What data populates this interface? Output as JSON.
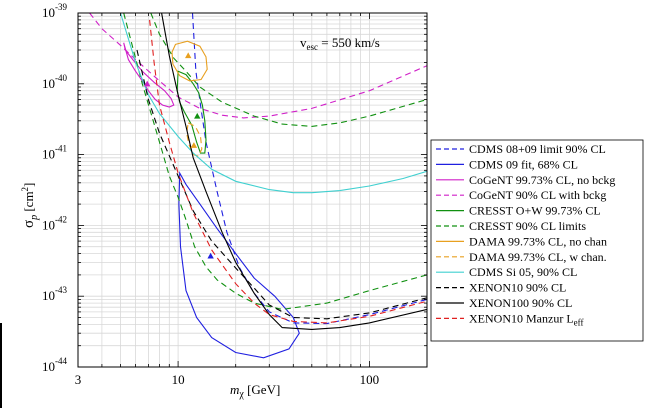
{
  "chart_data": {
    "type": "line",
    "xscale": "log",
    "yscale": "log",
    "xlim": [
      3,
      200
    ],
    "ylim": [
      1e-44,
      1e-39
    ],
    "xlabel": {
      "main": "m",
      "sub": "χ",
      "unit": " [GeV]"
    },
    "ylabel": {
      "main": "σ",
      "sub": "p",
      "unit": " [cm",
      "sup": "2",
      "close": "]"
    },
    "xticks": [
      {
        "value": 3,
        "label": "3"
      },
      {
        "value": 10,
        "label": "10"
      },
      {
        "value": 100,
        "label": "100"
      }
    ],
    "yticks": [
      {
        "value": 1e-44,
        "base": "10",
        "exp": "-44"
      },
      {
        "value": 1e-43,
        "base": "10",
        "exp": "-43"
      },
      {
        "value": 1e-42,
        "base": "10",
        "exp": "-42"
      },
      {
        "value": 1e-41,
        "base": "10",
        "exp": "-41"
      },
      {
        "value": 1e-40,
        "base": "10",
        "exp": "-40"
      },
      {
        "value": 1e-39,
        "base": "10",
        "exp": "-39"
      }
    ],
    "annotation": {
      "pre": "v",
      "sub": "esc",
      "post": " = 550 km/s"
    },
    "grid": true,
    "legend_position": "right",
    "series": [
      {
        "name": "CDMS 08+09 limit 90% CL",
        "color": "#2020e0",
        "dash": "dashed",
        "closed": false,
        "points": [
          [
            11.9,
            1e-39
          ],
          [
            12.4,
            1.5e-40
          ],
          [
            13.1,
            5e-41
          ],
          [
            14,
            1.5e-41
          ],
          [
            16,
            3e-42
          ],
          [
            18,
            8e-43
          ],
          [
            21,
            2.5e-43
          ],
          [
            25,
            1.1e-43
          ],
          [
            30,
            6e-44
          ],
          [
            40,
            4.2e-44
          ],
          [
            60,
            4.1e-44
          ],
          [
            100,
            5.5e-44
          ],
          [
            200,
            9e-44
          ]
        ]
      },
      {
        "name": "CDMS 09 fit,  68% CL",
        "color": "#2020e0",
        "dash": "solid",
        "closed": true,
        "points": [
          [
            10.2,
            5.5e-42
          ],
          [
            11,
            3.8e-42
          ],
          [
            13,
            2e-42
          ],
          [
            16,
            9e-43
          ],
          [
            20,
            4e-43
          ],
          [
            25,
            1.8e-43
          ],
          [
            32,
            1e-43
          ],
          [
            40,
            5e-44
          ],
          [
            43,
            3e-44
          ],
          [
            38,
            1.8e-44
          ],
          [
            28,
            1.35e-44
          ],
          [
            20,
            1.6e-44
          ],
          [
            15,
            2.6e-44
          ],
          [
            12.5,
            5e-44
          ],
          [
            11,
            1.2e-43
          ],
          [
            10.3,
            5e-43
          ],
          [
            10.1,
            2e-42
          ]
        ]
      },
      {
        "name": "CoGeNT 99.73% CL, no bckg",
        "color": "#d020c8",
        "dash": "solid",
        "closed": true,
        "points": [
          [
            5.2,
            3.8e-40
          ],
          [
            5.5,
            2.2e-40
          ],
          [
            6,
            1.5e-40
          ],
          [
            6.5,
            1.1e-40
          ],
          [
            7,
            8e-41
          ],
          [
            7.6,
            6e-41
          ],
          [
            8.3,
            5e-41
          ],
          [
            9,
            4.7e-41
          ],
          [
            9.5,
            5e-41
          ],
          [
            9.2,
            6.2e-41
          ],
          [
            8.5,
            8e-41
          ],
          [
            7.5,
            1.05e-40
          ],
          [
            6.5,
            1.5e-40
          ],
          [
            5.8,
            2.2e-40
          ],
          [
            5.3,
            3e-40
          ]
        ]
      },
      {
        "name": "CoGeNT 90% CL with bckg",
        "color": "#d020c8",
        "dash": "dashed",
        "closed": false,
        "points": [
          [
            3.45,
            1e-39
          ],
          [
            4,
            6e-40
          ],
          [
            5,
            3.5e-40
          ],
          [
            6,
            2.2e-40
          ],
          [
            8,
            1.1e-40
          ],
          [
            10,
            6.5e-41
          ],
          [
            13,
            4.5e-41
          ],
          [
            17,
            3.6e-41
          ],
          [
            22,
            3.3e-41
          ],
          [
            30,
            3.5e-41
          ],
          [
            50,
            4.5e-41
          ],
          [
            100,
            8e-41
          ],
          [
            200,
            1.8e-40
          ]
        ]
      },
      {
        "name": "CRESST O+W 99.73% CL",
        "color": "#109010",
        "dash": "solid",
        "closed": true,
        "points": [
          [
            10,
            1.5e-40
          ],
          [
            11,
            1.35e-40
          ],
          [
            12,
            1e-40
          ],
          [
            12.8,
            7.5e-41
          ],
          [
            13.4,
            5e-41
          ],
          [
            13.8,
            3e-41
          ],
          [
            14,
            1.6e-41
          ],
          [
            13.8,
            1.05e-41
          ],
          [
            13.1,
            1.05e-41
          ],
          [
            12.5,
            1.5e-41
          ],
          [
            11.8,
            2.6e-41
          ],
          [
            10.8,
            4e-41
          ],
          [
            10.2,
            5.5e-41
          ],
          [
            9.9,
            8e-41
          ]
        ]
      },
      {
        "name": "CRESST 90% CL limits",
        "color": "#109010",
        "dash": "dashed",
        "closed": false,
        "points": [
          [
            5.2,
            1e-39
          ],
          [
            6.5,
            1e-40
          ],
          [
            8,
            1.5e-41
          ],
          [
            9,
            5e-42
          ],
          [
            10,
            2.5e-42
          ],
          [
            11,
            1.2e-42
          ],
          [
            12.2,
            5e-43
          ],
          [
            14,
            2.6e-43
          ],
          [
            16,
            1.7e-43
          ],
          [
            20,
            1.1e-43
          ],
          [
            25,
            8e-44
          ],
          [
            35,
            6.5e-44
          ],
          [
            60,
            8e-44
          ],
          [
            100,
            1.2e-43
          ],
          [
            200,
            2e-43
          ]
        ]
      },
      {
        "name": "CRESST 90% CL limits (upper)",
        "legend": false,
        "color": "#109010",
        "dash": "dashed",
        "closed": false,
        "points": [
          [
            7.2,
            1e-39
          ],
          [
            8,
            5e-40
          ],
          [
            9.5,
            2.3e-40
          ],
          [
            11,
            1.5e-40
          ],
          [
            13,
            9e-41
          ],
          [
            17,
            5.5e-41
          ],
          [
            25,
            3.5e-41
          ],
          [
            35,
            2.7e-41
          ],
          [
            50,
            2.5e-41
          ],
          [
            70,
            2.8e-41
          ],
          [
            100,
            3.5e-41
          ],
          [
            200,
            6e-41
          ]
        ]
      },
      {
        "name": "DAMA 99.73% CL, no chan",
        "color": "#e8a020",
        "dash": "solid",
        "closed": true,
        "points": [
          [
            9.7,
            3.6e-40
          ],
          [
            11.2,
            4e-40
          ],
          [
            13,
            3.4e-40
          ],
          [
            14,
            2.4e-40
          ],
          [
            14.2,
            1.6e-40
          ],
          [
            13.2,
            1.15e-40
          ],
          [
            11.5,
            1.1e-40
          ],
          [
            10.2,
            1.3e-40
          ],
          [
            9.4,
            1.9e-40
          ],
          [
            9.3,
            2.8e-40
          ]
        ]
      },
      {
        "name": "DAMA 99.73% CL, w chan.",
        "color": "#e8a020",
        "dash": "dashed",
        "closed": true,
        "points": [
          [
            11.3,
            2.8e-41
          ],
          [
            12.3,
            2.5e-41
          ],
          [
            13.1,
            1.8e-41
          ],
          [
            13.3,
            1.2e-41
          ],
          [
            12.8,
            9.5e-42
          ],
          [
            12,
            1e-41
          ],
          [
            11.4,
            1.4e-41
          ],
          [
            11.1,
            2e-41
          ]
        ]
      },
      {
        "name": "CDMS Si 05, 90% CL",
        "color": "#40d0d0",
        "dash": "solid",
        "closed": false,
        "points": [
          [
            5,
            1e-39
          ],
          [
            6,
            2e-40
          ],
          [
            7,
            7e-41
          ],
          [
            8,
            3.8e-41
          ],
          [
            10,
            1.8e-41
          ],
          [
            12,
            1.05e-41
          ],
          [
            15,
            6.2e-42
          ],
          [
            20,
            4.2e-42
          ],
          [
            30,
            3.2e-42
          ],
          [
            40,
            2.9e-42
          ],
          [
            50,
            2.9e-42
          ],
          [
            70,
            3.1e-42
          ],
          [
            100,
            3.6e-42
          ],
          [
            150,
            4.6e-42
          ],
          [
            200,
            5.8e-42
          ]
        ]
      },
      {
        "name": "XENON10 90% CL",
        "color": "#000000",
        "dash": "dashed",
        "closed": false,
        "points": [
          [
            6.1,
            3e-40
          ],
          [
            7,
            6e-41
          ],
          [
            8,
            2e-41
          ],
          [
            10,
            5e-42
          ],
          [
            12,
            1.6e-42
          ],
          [
            15,
            6e-43
          ],
          [
            20,
            2.5e-43
          ],
          [
            25,
            1.3e-43
          ],
          [
            30,
            7.5e-44
          ],
          [
            40,
            5e-44
          ],
          [
            60,
            4.8e-44
          ],
          [
            100,
            5.8e-44
          ],
          [
            200,
            9.5e-44
          ]
        ]
      },
      {
        "name": "XENON100 90% CL",
        "color": "#000000",
        "dash": "solid",
        "closed": false,
        "points": [
          [
            8.2,
            1e-39
          ],
          [
            9,
            2.5e-40
          ],
          [
            10,
            7e-41
          ],
          [
            11,
            2.5e-41
          ],
          [
            12,
            9e-42
          ],
          [
            14,
            3e-42
          ],
          [
            17,
            8e-43
          ],
          [
            20,
            3e-43
          ],
          [
            25,
            1.1e-43
          ],
          [
            30,
            5.5e-44
          ],
          [
            35,
            3.6e-44
          ],
          [
            50,
            3.4e-44
          ],
          [
            70,
            3.6e-44
          ],
          [
            100,
            4.2e-44
          ],
          [
            200,
            6.5e-44
          ]
        ]
      },
      {
        "name": "XENON10 Manzur L",
        "sub": "eff",
        "color": "#e02020",
        "dash": "dashed",
        "closed": false,
        "points": [
          [
            7.1,
            8e-40
          ],
          [
            7.5,
            2e-40
          ],
          [
            8,
            5e-41
          ],
          [
            9,
            1.5e-41
          ],
          [
            10,
            5.5e-42
          ],
          [
            12,
            1.5e-42
          ],
          [
            15,
            4.5e-43
          ],
          [
            20,
            1.5e-43
          ],
          [
            25,
            8e-44
          ],
          [
            30,
            5.5e-44
          ],
          [
            40,
            4.4e-44
          ],
          [
            60,
            4.2e-44
          ],
          [
            100,
            5.2e-44
          ],
          [
            200,
            8.5e-44
          ]
        ]
      }
    ],
    "markers": [
      {
        "series": "DAMA no chan",
        "x": 11.3,
        "y": 2.5e-40,
        "color": "#e8a020"
      },
      {
        "series": "DAMA w chan",
        "x": 12.1,
        "y": 1.35e-41,
        "color": "#e8a020"
      },
      {
        "series": "CoGeNT",
        "x": 6.9,
        "y": 1e-40,
        "color": "#d020c8"
      },
      {
        "series": "CRESST",
        "x": 12.6,
        "y": 3.5e-41,
        "color": "#109010"
      },
      {
        "series": "CDMS 09",
        "x": 14.8,
        "y": 3.7e-43,
        "color": "#2020e0"
      }
    ]
  }
}
